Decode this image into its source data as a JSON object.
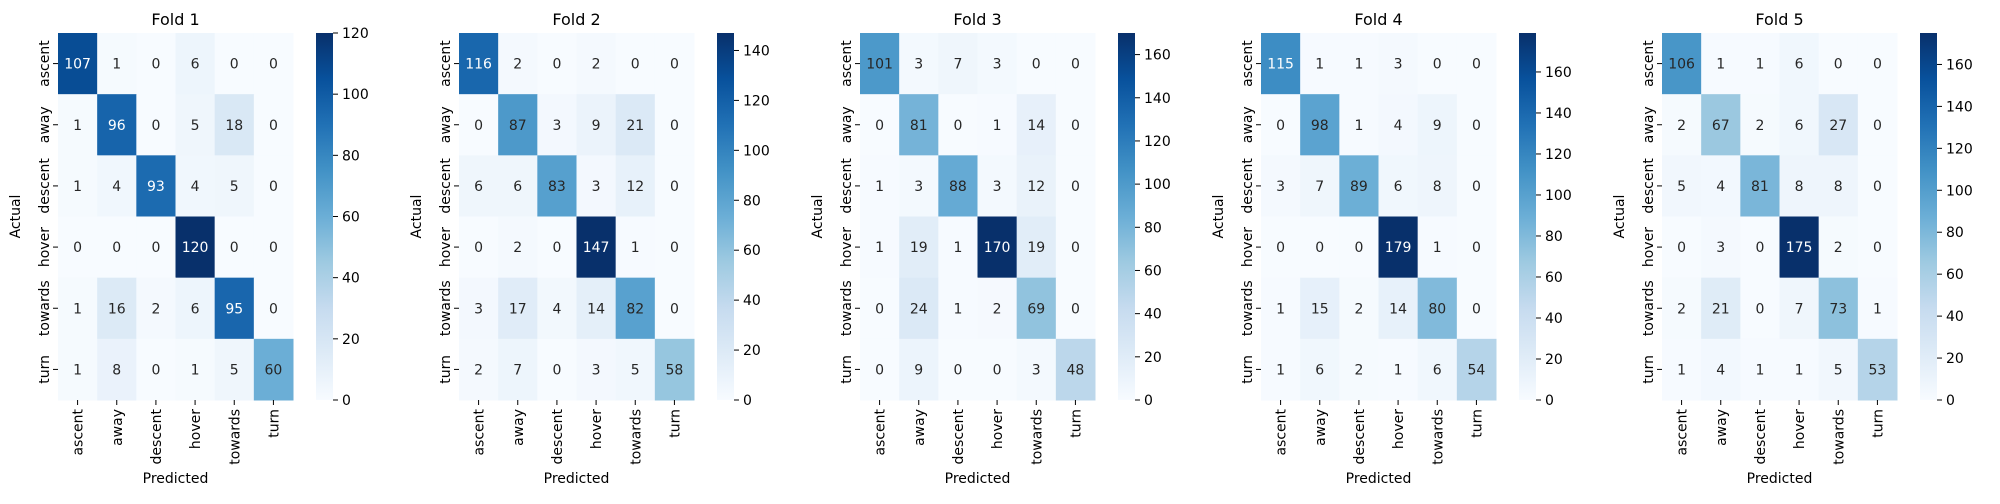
{
  "chart_data": [
    {
      "type": "heatmap",
      "title": "Fold 1",
      "xlabel": "Predicted",
      "ylabel": "Actual",
      "x_categories": [
        "ascent",
        "away",
        "descent",
        "hover",
        "towards",
        "turn"
      ],
      "y_categories": [
        "ascent",
        "away",
        "descent",
        "hover",
        "towards",
        "turn"
      ],
      "values": [
        [
          107,
          1,
          0,
          6,
          0,
          0
        ],
        [
          1,
          96,
          0,
          5,
          18,
          0
        ],
        [
          1,
          4,
          93,
          4,
          5,
          0
        ],
        [
          0,
          0,
          0,
          120,
          0,
          0
        ],
        [
          1,
          16,
          2,
          6,
          95,
          0
        ],
        [
          1,
          8,
          0,
          1,
          5,
          60
        ]
      ],
      "colorbar": {
        "min": 0,
        "max": 120,
        "ticks": [
          0,
          20,
          40,
          60,
          80,
          100,
          120
        ]
      },
      "colormap": "Blues"
    },
    {
      "type": "heatmap",
      "title": "Fold 2",
      "xlabel": "Predicted",
      "ylabel": "Actual",
      "x_categories": [
        "ascent",
        "away",
        "descent",
        "hover",
        "towards",
        "turn"
      ],
      "y_categories": [
        "ascent",
        "away",
        "descent",
        "hover",
        "towards",
        "turn"
      ],
      "values": [
        [
          116,
          2,
          0,
          2,
          0,
          0
        ],
        [
          0,
          87,
          3,
          9,
          21,
          0
        ],
        [
          6,
          6,
          83,
          3,
          12,
          0
        ],
        [
          0,
          2,
          0,
          147,
          1,
          0
        ],
        [
          3,
          17,
          4,
          14,
          82,
          0
        ],
        [
          2,
          7,
          0,
          3,
          5,
          58
        ]
      ],
      "colorbar": {
        "min": 0,
        "max": 147,
        "ticks": [
          0,
          20,
          40,
          60,
          80,
          100,
          120,
          140
        ]
      },
      "colormap": "Blues"
    },
    {
      "type": "heatmap",
      "title": "Fold 3",
      "xlabel": "Predicted",
      "ylabel": "Actual",
      "x_categories": [
        "ascent",
        "away",
        "descent",
        "hover",
        "towards",
        "turn"
      ],
      "y_categories": [
        "ascent",
        "away",
        "descent",
        "hover",
        "towards",
        "turn"
      ],
      "values": [
        [
          101,
          3,
          7,
          3,
          0,
          0
        ],
        [
          0,
          81,
          0,
          1,
          14,
          0
        ],
        [
          1,
          3,
          88,
          3,
          12,
          0
        ],
        [
          1,
          19,
          1,
          170,
          19,
          0
        ],
        [
          0,
          24,
          1,
          2,
          69,
          0
        ],
        [
          0,
          9,
          0,
          0,
          3,
          48
        ]
      ],
      "colorbar": {
        "min": 0,
        "max": 170,
        "ticks": [
          0,
          20,
          40,
          60,
          80,
          100,
          120,
          140,
          160
        ]
      },
      "colormap": "Blues"
    },
    {
      "type": "heatmap",
      "title": "Fold 4",
      "xlabel": "Predicted",
      "ylabel": "Actual",
      "x_categories": [
        "ascent",
        "away",
        "descent",
        "hover",
        "towards",
        "turn"
      ],
      "y_categories": [
        "ascent",
        "away",
        "descent",
        "hover",
        "towards",
        "turn"
      ],
      "values": [
        [
          115,
          1,
          1,
          3,
          0,
          0
        ],
        [
          0,
          98,
          1,
          4,
          9,
          0
        ],
        [
          3,
          7,
          89,
          6,
          8,
          0
        ],
        [
          0,
          0,
          0,
          179,
          1,
          0
        ],
        [
          1,
          15,
          2,
          14,
          80,
          0
        ],
        [
          1,
          6,
          2,
          1,
          6,
          54
        ]
      ],
      "colorbar": {
        "min": 0,
        "max": 179,
        "ticks": [
          0,
          20,
          40,
          60,
          80,
          100,
          120,
          140,
          160
        ]
      },
      "colormap": "Blues"
    },
    {
      "type": "heatmap",
      "title": "Fold 5",
      "xlabel": "Predicted",
      "ylabel": "Actual",
      "x_categories": [
        "ascent",
        "away",
        "descent",
        "hover",
        "towards",
        "turn"
      ],
      "y_categories": [
        "ascent",
        "away",
        "descent",
        "hover",
        "towards",
        "turn"
      ],
      "values": [
        [
          106,
          1,
          1,
          6,
          0,
          0
        ],
        [
          2,
          67,
          2,
          6,
          27,
          0
        ],
        [
          5,
          4,
          81,
          8,
          8,
          0
        ],
        [
          0,
          3,
          0,
          175,
          2,
          0
        ],
        [
          2,
          21,
          0,
          7,
          73,
          1
        ],
        [
          1,
          4,
          1,
          1,
          5,
          53
        ]
      ],
      "colorbar": {
        "min": 0,
        "max": 175,
        "ticks": [
          0,
          20,
          40,
          60,
          80,
          100,
          120,
          140,
          160
        ]
      },
      "colormap": "Blues"
    }
  ]
}
